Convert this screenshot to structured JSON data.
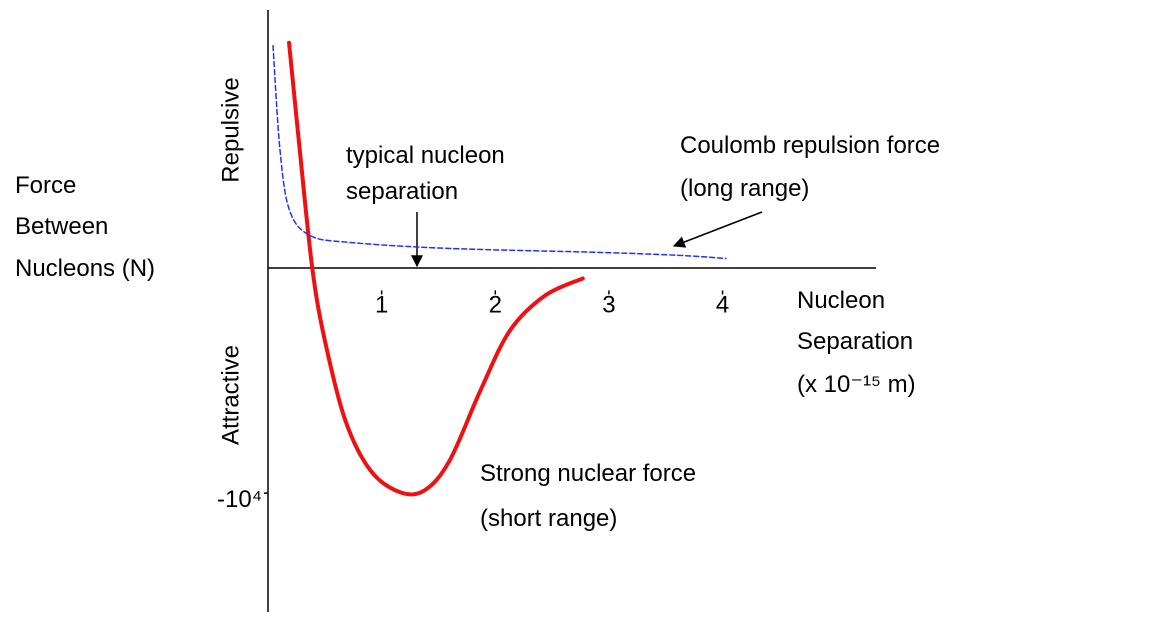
{
  "chart_data": {
    "type": "line",
    "ylabel_lines": [
      "Force",
      "Between",
      "Nucleons (N)"
    ],
    "xlabel_lines": [
      "Nucleon",
      "Separation",
      "(x 10⁻¹⁵ m)"
    ],
    "repulsive_label": "Repulsive",
    "attractive_label": "Attractive",
    "annotations": [
      {
        "lines": [
          "typical nucleon",
          "separation"
        ]
      }
    ],
    "xlim": [
      0,
      5.35
    ],
    "ylim": [
      -15200,
      11500
    ],
    "xticks": [
      1,
      2,
      3,
      4
    ],
    "yticks": [
      {
        "value": -10000,
        "label": "-10⁴"
      }
    ],
    "series": [
      {
        "name_lines": [
          "Strong nuclear force",
          "(short range)"
        ],
        "color": "#ee1111",
        "dashed": false,
        "x": [
          0.185,
          0.28,
          0.39,
          0.5,
          0.68,
          0.9,
          1.16,
          1.38,
          1.6,
          1.87,
          2.13,
          2.44,
          2.77
        ],
        "values": [
          10044,
          5244,
          0,
          -3200,
          -6756,
          -8978,
          -9956,
          -9867,
          -8533,
          -5422,
          -2756,
          -1200,
          -444
        ]
      },
      {
        "name_lines": [
          "Coulomb repulsion force",
          "(long range)"
        ],
        "color": "#2233ee",
        "dashed": true,
        "x": [
          0.044,
          0.106,
          0.19,
          0.37,
          0.72,
          1.6,
          2.93,
          3.63,
          4.03
        ],
        "values": [
          9911,
          5244,
          2578,
          1467,
          1156,
          889,
          711,
          578,
          444
        ]
      }
    ]
  }
}
